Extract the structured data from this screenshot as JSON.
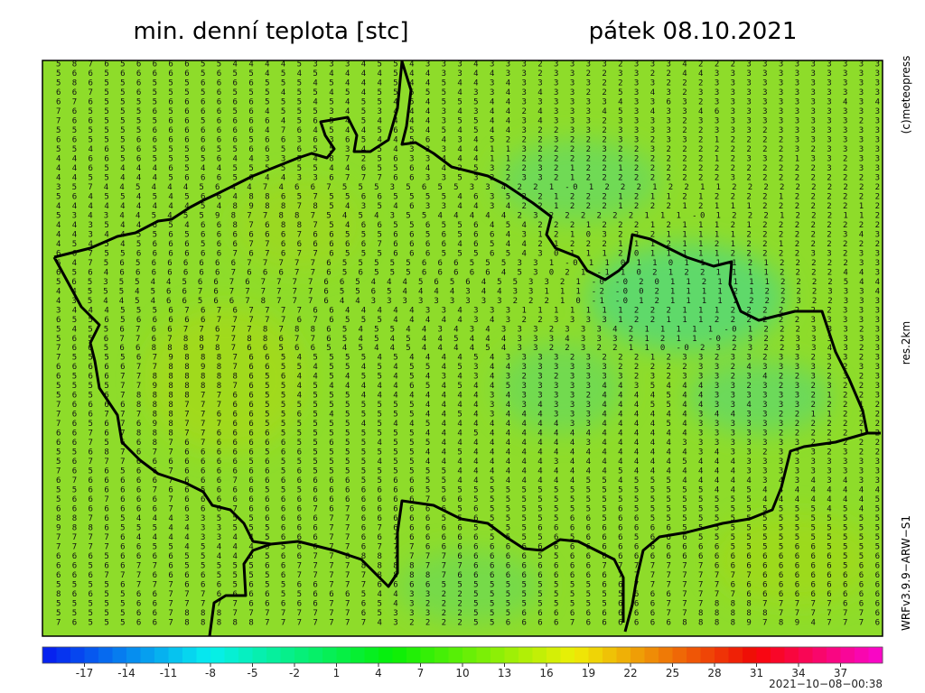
{
  "header": {
    "title": "min. denní teplota [stc]",
    "date": "pátek 08.10.2021"
  },
  "side_labels": {
    "copyright": "(c)meteopress",
    "resolution": "res.2km",
    "model": "WRFv3.9.9−ARW−S1"
  },
  "map": {
    "rows": [
      "5 8 7 6 5 6 6 6 6 5 5 4 4 4 4 5 3 3 3 4 5 5 4 3 3 3 4 3 3 3 2 3 3 3 3 2 3 3 3 4 2 2 2 3 3 3 3 3 3 3 3 3",
      "5 6 6 5 6 6 6 6 6 5 6 5 5 4 5 4 5 4 4 4 4 5 4 4 3 3 4 4 3 3 2 3 3 2 2 3 3 2 2 4 4 3 3 3 3 3 3 3 3 3 3 3",
      "5 8 6 5 5 6 5 5 5 6 6 6 6 5 5 5 4 5 4 4 4 5 4 4 5 4 4 3 4 3 3 3 3 3 2 2 3 3 2 2 2 3 3 3 3 3 3 3 3 3 3 3",
      "6 6 7 5 5 6 5 5 5 5 6 5 5 5 4 5 5 4 5 4 5 5 5 5 5 4 3 3 4 3 4 3 3 2 2 5 3 4 3 2 3 3 3 3 3 3 3 3 3 3 3 3",
      "6 7 6 5 5 5 5 6 6 6 6 6 6 5 5 5 4 5 4 5 5 4 5 4 5 5 5 4 4 3 3 3 3 3 3 4 3 3 6 3 2 3 3 3 3 3 3 3 3 4 3 4",
      "7 6 5 5 5 5 6 5 6 6 6 5 6 4 5 5 5 3 4 5 3 4 4 4 3 4 3 4 4 2 4 3 3 3 4 5 3 4 3 3 4 6 3 3 3 3 3 3 3 3 3 3",
      "7 6 6 5 5 5 5 6 6 5 6 6 6 6 4 5 6 5 4 5 4 4 4 4 3 5 5 4 4 3 4 3 3 3 2 3 3 3 3 2 3 3 3 3 3 3 3 3 3 3 2 3",
      "5 5 5 5 5 5 6 6 6 6 6 6 6 4 7 6 4 5 4 4 5 6 5 4 5 4 5 4 4 3 2 2 3 3 2 3 3 3 3 2 2 3 3 3 2 3 3 3 3 3 3 3",
      "6 6 5 5 5 6 6 6 6 6 6 6 5 6 6 3 6 3 6 5 4 4 5 6 4 3 4 5 2 2 2 3 2 2 2 3 3 2 3 3 2 1 2 2 2 2 3 3 3 3 3 3",
      "5 5 4 6 5 6 5 5 5 6 5 5 6 6 5 6 5 5 3 4 5 4 3 3 3 4 4 1 1 3 2 2 2 2 3 2 2 3 2 2 2 2 2 2 2 2 3 2 3 3 3 3",
      "4 4 6 6 5 6 5 5 5 5 6 4 4 3 3 5 4 8 7 2 5 6 3 3 4 4 4 1 1 2 2 2 2 2 2 2 2 2 2 2 2 1 2 3 3 2 1 3 3 2 3 3",
      "4 4 6 5 4 4 4 6 5 4 4 5 5 5 5 5 5 4 4 6 5 5 6 4 4 2 5 3 2 2 3 2 1 2 2 1 2 2 2 2 2 2 2 2 2 2 2 2 3 2 3 3",
      "4 4 5 5 4 4 4 5 6 6 6 5 6 4 4 3 3 6 7 7 7 6 6 3 3 5 3 2 2 3 3 2 1 2 2 2 2 2 2 2 2 2 3 2 2 2 2 2 2 2 2 3",
      "3 5 7 4 4 5 4 4 4 5 6 4 4 7 4 6 6 7 5 5 5 3 5 6 5 5 3 3 4 2 2 1 -0 1 2 2 2 1 2 2 1 1 2 2 2 2 2 2 2 2 2 2",
      "5 6 4 5 5 4 5 4 5 6 6 4 8 8 6 5 7 5 5 6 6 5 5 5 5 4 6 3 5 2 2 1 2 2 2 1 2 1 1 2 1 2 2 2 2 1 2 2 2 2 2 2",
      "4 4 4 4 4 4 4 4 4 5 4 8 9 8 8 7 8 5 4 3 5 4 6 3 3 4 4 3 4 2 2 1 2 2 2 1 2 2 2 1 2 1 1 1 2 2 2 2 2 2 1 2",
      "5 3 4 3 4 4 5 4 5 5 9 8 7 7 8 8 7 5 4 5 4 3 5 5 4 4 4 4 4 2 3 2 2 2 2 2 2 1 1 1 -0 1 2 2 2 1 2 2 2 1 1 2",
      "4 4 3 5 4 4 6 5 4 6 6 8 7 6 8 8 7 5 4 6 6 5 5 6 5 5 6 4 5 4 2 2 2 1 2 2 2 1 2 1 1 1 2 1 2 2 2 2 2 2 2 2",
      "4 4 3 4 4 5 5 6 5 6 6 6 6 6 6 7 6 6 5 5 5 6 6 5 6 5 6 6 4 3 1 2 1 0 3 2 2 2 1 1 1 1 1 2 2 2 2 2 2 3 4 3",
      "4 5 4 5 4 5 6 6 6 5 6 6 7 7 6 6 6 6 6 6 7 6 6 6 6 4 6 5 4 4 2 1 2 2 2 1 1 1 2 1 1 2 1 2 2 1 2 2 2 2 2 2",
      "6 6 7 5 5 6 6 6 6 6 6 7 6 7 6 7 7 6 5 5 5 6 6 6 5 5 5 6 5 4 3 0 1 1 1 2 0 1 1 1 1 1 2 2 2 2 2 3 3 2 3 3",
      "6 4 7 5 6 5 6 6 6 6 6 6 7 7 7 7 7 6 5 5 5 5 5 6 6 6 5 5 5 3 3 1 -0 1 1 0 1 1 0 1 1 1 1 2 1 2 2 2 2 2 3 3",
      "6 5 6 4 6 6 6 6 6 6 6 7 6 6 6 7 7 6 5 6 5 5 5 6 6 6 6 6 4 5 3 0 2 1 -1 1 0 2 1 2 2 1 1 1 1 2 2 2 2 4 4 3",
      "5 6 5 3 5 5 4 4 5 6 6 7 6 7 7 7 7 6 6 5 4 4 4 5 6 5 6 4 5 5 3 3 2 1 -0 -0 2 0 1 1 2 1 1 1 1 2 2 2 2 5 4 4",
      "4 4 5 5 5 4 5 6 6 7 6 7 7 7 7 7 7 6 5 5 6 5 4 4 4 4 3 4 4 3 3 1 1 1 -2 -0 0 2 1 1 1 1 2 1 2 2 2 2 3 3 3 4",
      "4 3 5 4 4 5 4 6 6 5 6 6 7 8 7 7 7 6 4 4 3 3 3 3 3 3 3 3 3 2 2 2 1 0 -1 -0 1 2 1 1 1 1 2 2 2 2 3 2 2 3 3 3",
      "3 4 4 4 5 5 5 6 7 6 7 6 7 7 7 7 6 6 4 4 4 4 4 3 3 4 3 3 3 1 1 1 1 1 1 1 2 2 2 1 1 1 2 2 2 2 2 2 2 3 3 3",
      "6 5 5 6 5 6 6 6 6 6 7 7 7 7 7 6 7 6 5 5 5 4 4 4 4 4 3 4 3 2 2 3 3 3 3 1 2 2 1 1 1 2 2 2 2 2 2 3 3 3 3 3",
      "5 4 5 5 6 7 6 6 7 7 6 7 7 8 7 8 8 6 5 4 5 5 4 4 3 4 3 4 3 3 3 2 3 3 3 4 2 1 1 1 1 1 -0 1 2 2 2 3 3 3 2 3",
      "5 6 5 6 7 7 6 7 8 8 7 7 8 8 6 7 7 6 5 4 5 4 5 4 4 5 4 4 4 3 3 3 4 3 3 3 2 1 2 1 1 -0 2 3 2 2 3 3 3 3 3 3",
      "7 6 6 5 6 6 8 8 8 9 8 7 6 6 5 6 6 5 4 5 4 4 5 4 4 4 4 5 4 3 3 2 2 3 2 2 1 1 0 -0 2 3 2 3 2 2 3 3 4 3 2 3",
      "7 5 5 5 5 6 7 9 8 8 8 7 6 6 5 4 5 5 5 5 4 5 4 4 4 4 5 4 3 3 3 3 2 3 2 2 2 1 2 3 3 2 3 3 2 3 3 2 3 3 2 3",
      "6 6 6 6 6 7 7 8 8 9 8 7 6 6 5 5 4 5 5 4 5 4 5 5 4 5 3 4 4 3 3 3 3 3 3 2 2 2 2 2 3 3 2 4 3 3 3 3 2 2 3 3",
      "6 5 6 6 7 7 8 8 8 8 8 8 6 5 6 4 4 5 4 5 5 4 5 4 3 4 3 4 3 2 3 2 3 3 3 3 2 3 2 3 3 3 2 3 4 2 2 3 2 3 2 3",
      "5 5 5 5 7 7 9 8 8 8 8 7 6 5 5 4 5 4 4 4 4 4 6 5 4 5 4 4 5 3 3 3 3 3 4 4 3 5 4 4 4 3 3 2 3 2 3 2 3 2 2 3",
      "5 6 5 6 7 8 8 8 8 7 7 6 6 5 5 4 5 5 5 4 4 4 4 4 4 4 4 3 4 3 3 3 3 2 4 4 4 4 5 4 4 3 3 3 3 3 3 2 1 2 2 3",
      "7 6 6 6 6 8 8 8 7 7 7 6 6 5 5 5 5 5 5 5 5 5 5 4 4 4 4 3 4 3 4 3 3 3 4 4 4 5 5 4 4 3 3 4 3 3 3 2 2 2 1 2",
      "7 6 6 7 7 7 8 8 7 7 6 6 6 5 5 6 5 4 5 5 5 5 5 4 4 5 4 3 4 4 4 3 3 3 4 4 4 4 4 4 3 4 4 3 3 2 2 1 1 2 2 2",
      "7 6 5 6 7 6 9 8 7 7 7 6 6 5 5 5 5 5 5 4 5 4 4 5 4 4 4 4 4 4 4 4 3 3 4 4 4 4 5 4 3 3 3 3 3 3 2 2 2 2 2 2",
      "6 6 7 6 7 8 8 8 7 7 6 6 6 6 5 5 5 5 5 5 5 5 5 4 4 4 5 4 4 4 4 4 4 4 4 4 4 4 4 4 3 3 3 3 3 2 2 2 2 2 1 2",
      "6 6 7 5 6 6 8 7 6 7 6 6 6 6 6 5 5 6 5 5 4 5 5 5 4 4 4 4 4 4 4 4 4 3 4 4 4 4 4 3 3 3 3 3 3 3 3 2 2 2 2 2",
      "5 5 6 8 7 6 7 7 6 6 6 6 6 5 6 6 5 5 5 5 5 5 5 4 4 5 4 4 4 4 4 4 4 4 4 4 4 4 4 4 3 4 3 3 2 3 3 3 2 3 2 2",
      "5 6 7 7 7 6 6 6 6 6 6 6 5 6 5 5 5 5 5 5 4 5 5 4 4 4 4 4 4 4 4 3 4 4 4 4 4 4 4 5 4 4 4 3 3 3 3 3 3 3 3 3",
      "7 6 5 6 5 6 6 7 6 6 6 6 6 6 5 6 5 5 5 5 5 5 5 5 5 4 4 4 4 4 4 4 4 4 4 5 4 4 4 4 4 4 4 3 3 3 3 3 3 3 3 3",
      "6 7 6 6 6 6 6 7 6 6 6 7 6 6 6 6 6 6 6 5 5 6 6 5 5 4 4 5 4 4 4 4 4 5 5 4 5 5 5 4 4 4 4 4 3 4 3 4 3 4 3 3",
      "5 5 6 6 6 6 7 6 6 5 6 6 6 5 5 5 6 6 6 6 6 6 6 5 5 5 5 5 5 5 5 5 5 5 5 5 5 5 5 5 5 4 4 5 4 4 4 4 4 4 4 4",
      "5 6 6 7 6 6 6 7 6 6 6 6 6 6 6 6 6 6 6 6 6 6 6 7 6 6 5 5 5 5 5 5 5 5 5 5 5 5 5 5 5 5 5 5 4 4 4 4 4 4 4 5",
      "6 6 6 6 6 6 6 7 6 6 6 7 6 6 6 6 7 6 7 6 6 6 6 6 6 5 6 5 5 5 5 5 5 5 5 6 5 5 5 5 5 5 5 5 5 5 5 5 4 5 4 5",
      "8 8 7 6 5 4 4 4 3 3 5 5 5 6 6 6 6 7 7 6 6 6 6 6 5 5 6 5 5 5 5 5 6 6 5 6 6 5 5 5 5 5 5 5 5 5 5 5 5 5 5 5",
      "9 8 8 6 5 5 5 4 4 3 3 5 5 5 6 6 6 7 7 6 7 6 6 6 6 6 5 5 5 5 6 6 6 6 6 6 6 6 6 5 5 5 5 5 5 5 5 5 5 5 5 5",
      "7 7 7 7 6 4 4 4 4 3 3 4 4 5 6 6 6 7 7 6 6 7 6 6 6 6 6 5 5 5 5 6 5 6 6 6 5 6 6 6 5 5 5 5 5 5 5 5 5 5 5 5",
      "7 7 7 7 6 6 5 5 4 5 4 4 4 5 5 6 6 7 7 6 7 7 7 6 6 6 6 6 6 6 6 6 6 6 6 6 6 6 6 6 6 6 5 5 5 5 6 6 5 5 5 5",
      "6 6 6 5 6 6 6 6 5 5 4 4 5 5 6 6 7 7 8 8 8 7 7 7 7 6 6 6 6 6 5 5 6 6 6 6 6 6 6 6 6 6 6 6 6 6 6 6 6 5 5 6",
      "6 6 5 6 6 7 7 6 5 5 5 5 5 6 6 7 7 7 7 8 8 8 8 7 7 7 6 6 6 6 6 6 6 6 7 7 7 7 7 7 7 6 6 6 6 6 6 6 6 5 6 6",
      "6 6 6 7 7 7 6 6 6 6 5 5 5 5 6 7 7 7 7 7 8 8 8 8 7 6 6 6 6 6 6 6 6 6 6 7 7 7 7 7 7 7 7 7 6 6 6 6 6 6 6 6",
      "5 5 5 5 6 7 7 7 6 6 6 5 6 5 5 6 6 7 7 7 6 6 6 6 5 5 5 5 5 5 5 5 5 5 6 6 7 7 7 7 7 7 6 6 6 6 6 6 6 6 6 6",
      "8 6 6 5 5 6 6 7 7 7 6 6 6 6 5 5 6 6 6 5 4 4 3 3 2 2 5 5 5 5 5 5 5 5 5 5 6 6 6 7 7 7 7 6 6 6 6 6 6 6 6 6",
      "5 5 5 5 5 6 6 7 7 7 7 7 6 6 6 6 6 7 7 6 5 4 3 2 2 2 5 5 5 5 5 5 5 5 5 6 6 6 7 7 7 8 8 8 7 7 7 7 7 6 6 6",
      "5 5 5 5 5 6 6 7 8 8 8 7 7 7 7 7 7 7 7 6 5 3 3 3 2 2 5 5 5 6 6 6 6 6 6 6 6 6 7 7 8 8 8 8 8 7 7 7 7 7 7 6",
      "7 6 5 5 5 6 6 7 8 8 8 8 8 7 7 7 7 7 7 7 4 3 2 2 2 2 5 5 6 6 6 6 7 6 6 6 6 6 6 8 8 8 8 9 7 8 9 4 7 7 7 6"
    ]
  },
  "colorbar": {
    "lim": [
      -20,
      40
    ],
    "ticks": [
      -17,
      -14,
      -11,
      -8,
      -5,
      -2,
      1,
      4,
      7,
      10,
      13,
      16,
      19,
      22,
      25,
      28,
      31,
      34,
      37
    ]
  },
  "timestamp": "2021−10−08−00:38"
}
